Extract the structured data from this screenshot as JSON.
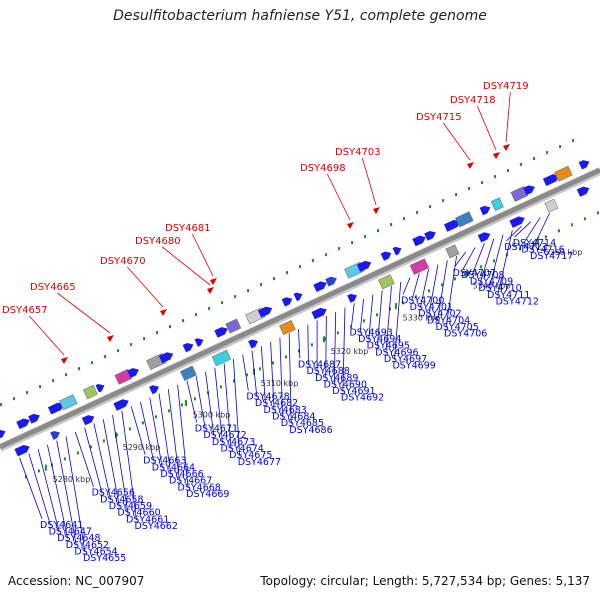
{
  "title": "Desulfitobacterium hafniense Y51, complete genome",
  "accession": "Accession: NC_007907",
  "stats": "Topology: circular; Length: 5,727,534 bp; Genes: 5,137",
  "colors": {
    "backbone": "#8a8a8a",
    "forward_gene": "#1a1aee",
    "label_blue": "#0000dd",
    "label_red": "#dd0000",
    "tick_green": "#208a20"
  },
  "scale_labels": [
    "5280 kbp",
    "5290 kbp",
    "5300 kbp",
    "5310 kbp",
    "5320 kbp",
    "5330 kbp",
    "5340 kbp",
    "5350 kbp"
  ],
  "red_genes": [
    "DSY4657",
    "DSY4665",
    "DSY4670",
    "DSY4680",
    "DSY4681",
    "DSY4698",
    "DSY4703",
    "DSY4715",
    "DSY4718",
    "DSY4719"
  ],
  "blue_genes": [
    "DSY4641",
    "DSY4647",
    "DSY4648",
    "DSY4652",
    "DSY4654",
    "DSY4655",
    "DSY4656",
    "DSY4658",
    "DSY4659",
    "DSY4660",
    "DSY4661",
    "DSY4662",
    "DSY4663",
    "DSY4664",
    "DSY4666",
    "DSY4667",
    "DSY4668",
    "DSY4669",
    "DSY4671",
    "DSY4672",
    "DSY4673",
    "DSY4674",
    "DSY4675",
    "DSY4677",
    "DSY4678",
    "DSY4682",
    "DSY4683",
    "DSY4684",
    "DSY4685",
    "DSY4686",
    "DSY4687",
    "DSY4688",
    "DSY4689",
    "DSY4690",
    "DSY4691",
    "DSY4692",
    "DSY4693",
    "DSY4694",
    "DSY4695",
    "DSY4696",
    "DSY4697",
    "DSY4699",
    "DSY4700",
    "DSY4701",
    "DSY4702",
    "DSY4704",
    "DSY4705",
    "DSY4706",
    "DSY4707",
    "DSY4708",
    "DSY4709",
    "DSY4710",
    "DSY4711",
    "DSY4712",
    "DSY4713",
    "DSY4714",
    "DSY4716",
    "DSY4717"
  ]
}
